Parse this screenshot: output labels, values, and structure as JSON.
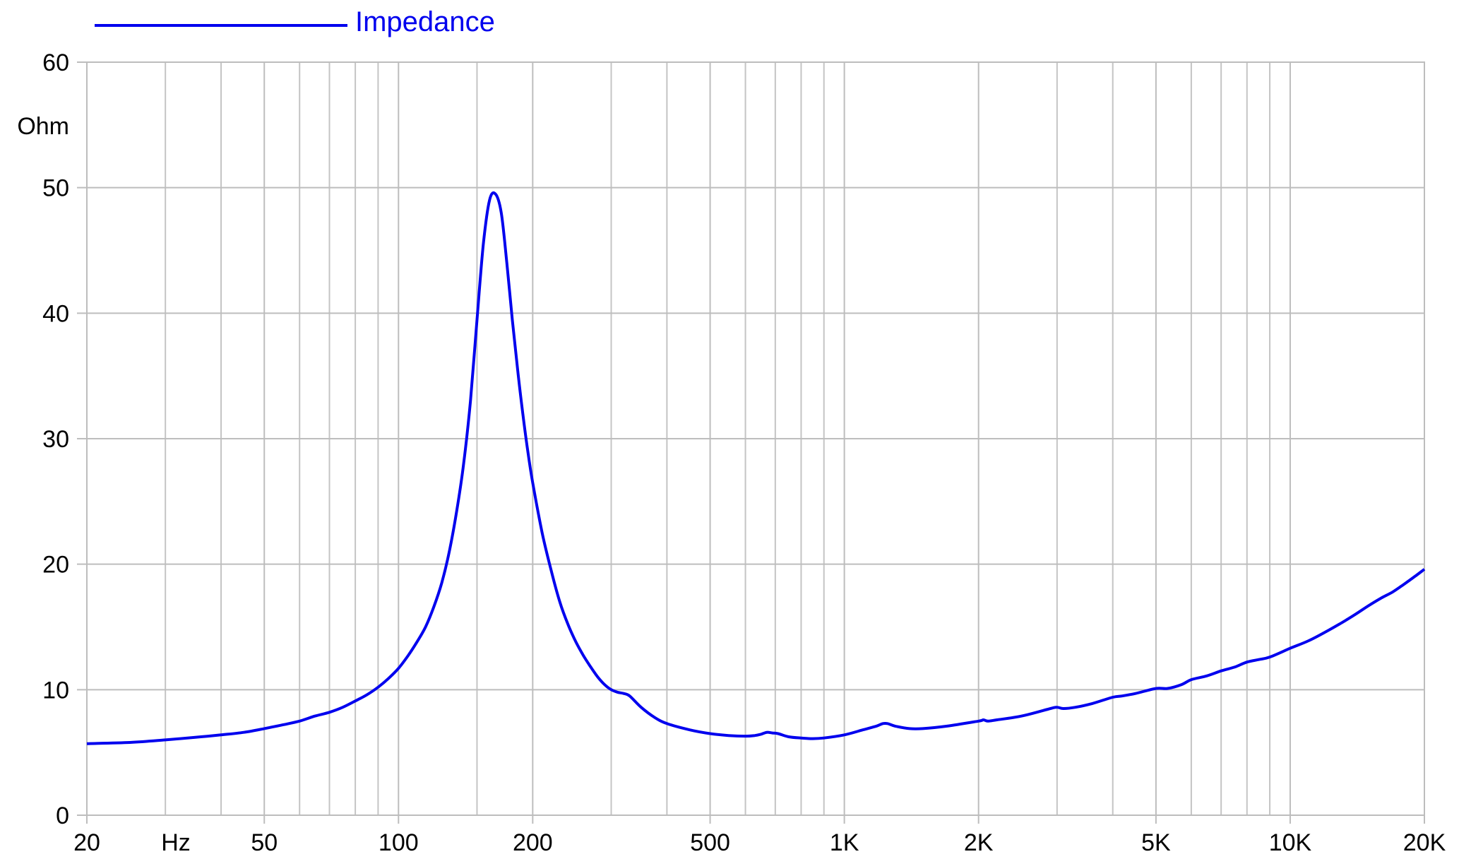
{
  "chart_data": {
    "type": "line",
    "x_scale": "log",
    "xlim": [
      20,
      20000
    ],
    "ylim": [
      0,
      60
    ],
    "grid": true,
    "legend_position": "top-left",
    "ylabel": "Ohm",
    "xlabel": "Hz",
    "x_ticks": [
      {
        "value": 20,
        "label": "20"
      },
      {
        "value": 50,
        "label": "50"
      },
      {
        "value": 100,
        "label": "100"
      },
      {
        "value": 200,
        "label": "200"
      },
      {
        "value": 500,
        "label": "500"
      },
      {
        "value": 1000,
        "label": "1K"
      },
      {
        "value": 2000,
        "label": "2K"
      },
      {
        "value": 5000,
        "label": "5K"
      },
      {
        "value": 10000,
        "label": "10K"
      },
      {
        "value": 20000,
        "label": "20K"
      }
    ],
    "x_minor_grid": [
      30,
      40,
      60,
      70,
      80,
      90,
      150,
      300,
      400,
      600,
      700,
      800,
      900,
      3000,
      4000,
      6000,
      7000,
      8000,
      9000
    ],
    "y_ticks": [
      0,
      10,
      20,
      30,
      40,
      50,
      60
    ],
    "series": [
      {
        "name": "Impedance",
        "color": "#0000ee",
        "x": [
          20,
          25,
          30,
          35,
          40,
          45,
          50,
          55,
          60,
          65,
          70,
          75,
          80,
          85,
          90,
          95,
          100,
          105,
          110,
          115,
          120,
          125,
          130,
          135,
          140,
          145,
          150,
          155,
          160,
          165,
          170,
          175,
          180,
          185,
          190,
          195,
          200,
          210,
          220,
          230,
          240,
          250,
          260,
          270,
          280,
          290,
          300,
          310,
          320,
          330,
          350,
          375,
          400,
          450,
          500,
          550,
          600,
          630,
          650,
          670,
          690,
          710,
          750,
          800,
          850,
          900,
          1000,
          1100,
          1180,
          1220,
          1250,
          1300,
          1400,
          1500,
          1700,
          2000,
          2050,
          2100,
          2200,
          2500,
          2900,
          3000,
          3100,
          3300,
          3600,
          4000,
          4200,
          4500,
          5000,
          5300,
          5700,
          6000,
          6500,
          7000,
          7500,
          8000,
          8500,
          9000,
          10000,
          11000,
          12000,
          13000,
          14000,
          15000,
          16000,
          17000,
          18000,
          19000,
          20000
        ],
        "values": [
          5.7,
          5.8,
          6.0,
          6.2,
          6.4,
          6.6,
          6.9,
          7.2,
          7.5,
          7.9,
          8.2,
          8.6,
          9.1,
          9.6,
          10.2,
          10.9,
          11.7,
          12.7,
          13.8,
          15.0,
          16.6,
          18.5,
          21.0,
          24.2,
          28.0,
          33.0,
          39.5,
          45.5,
          49.0,
          49.5,
          48.0,
          44.0,
          39.5,
          35.5,
          32.0,
          29.0,
          26.5,
          22.5,
          19.5,
          17.0,
          15.2,
          13.8,
          12.7,
          11.8,
          11.0,
          10.4,
          10.0,
          9.8,
          9.7,
          9.5,
          8.6,
          7.8,
          7.3,
          6.8,
          6.5,
          6.35,
          6.3,
          6.35,
          6.45,
          6.6,
          6.55,
          6.5,
          6.25,
          6.15,
          6.1,
          6.15,
          6.4,
          6.8,
          7.1,
          7.3,
          7.3,
          7.1,
          6.9,
          6.9,
          7.1,
          7.5,
          7.6,
          7.5,
          7.6,
          7.9,
          8.5,
          8.6,
          8.5,
          8.6,
          8.9,
          9.4,
          9.5,
          9.7,
          10.1,
          10.1,
          10.4,
          10.8,
          11.1,
          11.5,
          11.8,
          12.2,
          12.4,
          12.6,
          13.3,
          13.9,
          14.6,
          15.3,
          16.0,
          16.7,
          17.3,
          17.8,
          18.4,
          19.0,
          19.6
        ]
      }
    ]
  }
}
